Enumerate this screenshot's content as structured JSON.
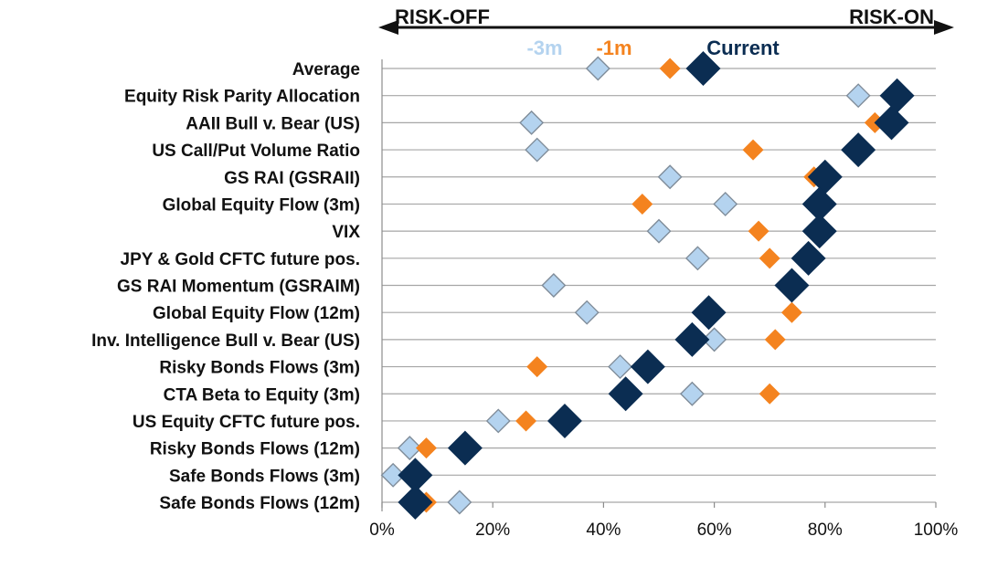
{
  "chart_data": {
    "type": "scatter",
    "direction": {
      "left_label": "RISK-OFF",
      "right_label": "RISK-ON"
    },
    "categories": [
      "Average",
      "Equity Risk Parity Allocation",
      "AAII Bull v. Bear (US)",
      "US Call/Put Volume Ratio",
      "GS RAI (GSRAII)",
      "Global Equity Flow (3m)",
      "VIX",
      "JPY & Gold CFTC future pos.",
      "GS RAI Momentum (GSRAIM)",
      "Global Equity Flow (12m)",
      "Inv. Intelligence Bull v. Bear (US)",
      "Risky Bonds Flows (3m)",
      "CTA Beta to Equity (3m)",
      "US Equity CFTC future pos.",
      "Risky Bonds Flows (12m)",
      "Safe Bonds Flows (3m)",
      "Safe Bonds Flows (12m)"
    ],
    "series": [
      {
        "name": "-3m",
        "color": "#b4d3ef",
        "marker": "diamond",
        "values": [
          39,
          86,
          27,
          28,
          52,
          62,
          50,
          57,
          31,
          37,
          60,
          43,
          56,
          21,
          5,
          2,
          14
        ]
      },
      {
        "name": "-1m",
        "color": "#f4831f",
        "marker": "diamond",
        "values": [
          52,
          92,
          89,
          67,
          78,
          47,
          68,
          70,
          75,
          74,
          71,
          28,
          70,
          26,
          8,
          5,
          8
        ]
      },
      {
        "name": "Current",
        "color": "#0b2d52",
        "marker": "diamond",
        "values": [
          58,
          93,
          92,
          86,
          80,
          79,
          79,
          77,
          74,
          59,
          56,
          48,
          44,
          33,
          15,
          6,
          6
        ]
      }
    ],
    "x_axis": {
      "min": 0,
      "max": 100,
      "ticks": [
        0,
        20,
        40,
        60,
        80,
        100
      ],
      "tick_labels": [
        "0%",
        "20%",
        "40%",
        "60%",
        "80%",
        "100%"
      ]
    },
    "grid": "horizontal",
    "legend_position": "top-center"
  }
}
